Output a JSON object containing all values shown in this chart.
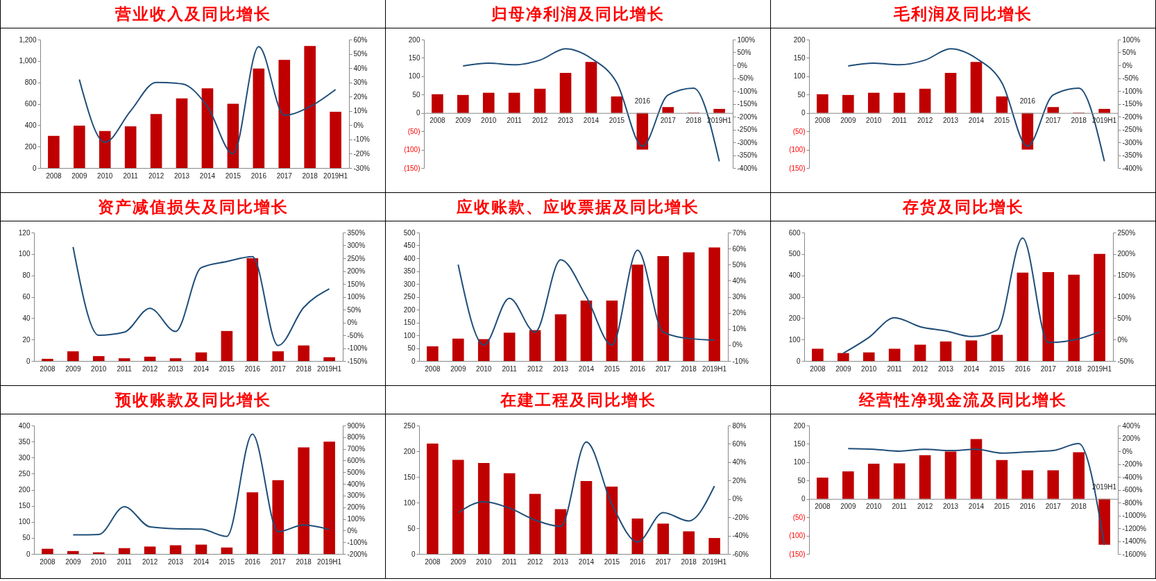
{
  "chart_data": [
    {
      "type": "bar",
      "title": "营业收入及同比增长",
      "categories": [
        "2008",
        "2009",
        "2010",
        "2011",
        "2012",
        "2013",
        "2014",
        "2015",
        "2016",
        "2017",
        "2018",
        "2019H1"
      ],
      "series": [
        {
          "color": "#c00000",
          "values": [
            300,
            395,
            345,
            390,
            505,
            650,
            745,
            600,
            930,
            1010,
            1140,
            525
          ]
        },
        {
          "type": "line",
          "axis": "y2",
          "color": "#1f4e79",
          "values": [
            null,
            32,
            -12,
            10,
            30,
            29,
            13,
            -20,
            55,
            7,
            13,
            25
          ]
        }
      ],
      "ylim": [
        0,
        1200
      ],
      "yticks": [
        0,
        200,
        400,
        600,
        800,
        {
          "value": 1000,
          "label": "1,000"
        },
        {
          "value": 1200,
          "label": "1,200"
        }
      ],
      "y2lim": [
        -30,
        60
      ],
      "y2ticks": [
        {
          "value": -30,
          "label": "-30%"
        },
        {
          "value": -20,
          "label": "-20%"
        },
        {
          "value": -10,
          "label": "-10%"
        },
        {
          "value": 0,
          "label": "0%"
        },
        {
          "value": 10,
          "label": "10%"
        },
        {
          "value": 20,
          "label": "20%"
        },
        {
          "value": 30,
          "label": "30%"
        },
        {
          "value": 40,
          "label": "40%"
        },
        {
          "value": 50,
          "label": "50%"
        },
        {
          "value": 60,
          "label": "60%"
        }
      ]
    },
    {
      "type": "bar",
      "title": "归母净利润及同比增长",
      "categories": [
        "2008",
        "2009",
        "2010",
        "2011",
        "2012",
        "2013",
        "2014",
        "2015",
        "2016",
        "2017",
        "2018",
        "2019H1"
      ],
      "series": [
        {
          "color": "#c00000",
          "values": [
            51,
            49,
            55,
            55,
            66,
            109,
            139,
            45,
            -100,
            16,
            1,
            11
          ]
        },
        {
          "type": "line",
          "axis": "y2",
          "color": "#1f4e79",
          "values": [
            null,
            -3,
            8,
            2,
            20,
            64,
            27,
            -68,
            -315,
            -116,
            -89,
            -374
          ]
        }
      ],
      "ylim": [
        -150,
        200
      ],
      "yticks": [
        {
          "value": -150,
          "label": "(150)"
        },
        {
          "value": -100,
          "label": "(100)"
        },
        {
          "value": -50,
          "label": "(50)"
        },
        0,
        50,
        100,
        150,
        200
      ],
      "y2lim": [
        -400,
        100
      ],
      "y2ticks": [
        {
          "value": -400,
          "label": "-400%"
        },
        {
          "value": -350,
          "label": "-350%"
        },
        {
          "value": -300,
          "label": "-300%"
        },
        {
          "value": -250,
          "label": "-250%"
        },
        {
          "value": -200,
          "label": "-200%"
        },
        {
          "value": -150,
          "label": "-150%"
        },
        {
          "value": -100,
          "label": "-100%"
        },
        {
          "value": -50,
          "label": "-50%"
        },
        {
          "value": 0,
          "label": "0%"
        },
        {
          "value": 50,
          "label": "50%"
        },
        {
          "value": 100,
          "label": "100%"
        }
      ]
    },
    {
      "type": "bar",
      "title": "毛利润及同比增长",
      "categories": [
        "2008",
        "2009",
        "2010",
        "2011",
        "2012",
        "2013",
        "2014",
        "2015",
        "2016",
        "2017",
        "2018",
        "2019H1"
      ],
      "series": [
        {
          "color": "#c00000",
          "values": [
            51,
            49,
            55,
            55,
            66,
            109,
            139,
            45,
            -100,
            16,
            1,
            11
          ]
        },
        {
          "type": "line",
          "axis": "y2",
          "color": "#1f4e79",
          "values": [
            null,
            -3,
            8,
            2,
            20,
            64,
            27,
            -68,
            -315,
            -116,
            -89,
            -374
          ]
        }
      ],
      "ylim": [
        -150,
        200
      ],
      "yticks": [
        {
          "value": -150,
          "label": "(150)"
        },
        {
          "value": -100,
          "label": "(100)"
        },
        {
          "value": -50,
          "label": "(50)"
        },
        0,
        50,
        100,
        150,
        200
      ],
      "y2lim": [
        -400,
        100
      ],
      "y2ticks": [
        {
          "value": -400,
          "label": "-400%"
        },
        {
          "value": -350,
          "label": "-350%"
        },
        {
          "value": -300,
          "label": "-300%"
        },
        {
          "value": -250,
          "label": "-250%"
        },
        {
          "value": -200,
          "label": "-200%"
        },
        {
          "value": -150,
          "label": "-150%"
        },
        {
          "value": -100,
          "label": "-100%"
        },
        {
          "value": -50,
          "label": "-50%"
        },
        {
          "value": 0,
          "label": "0%"
        },
        {
          "value": 50,
          "label": "50%"
        },
        {
          "value": 100,
          "label": "100%"
        }
      ]
    },
    {
      "type": "bar",
      "title": "资产减值损失及同比增长",
      "categories": [
        "2008",
        "2009",
        "2010",
        "2011",
        "2012",
        "2013",
        "2014",
        "2015",
        "2016",
        "2017",
        "2018",
        "2019H1"
      ],
      "series": [
        {
          "color": "#c00000",
          "values": [
            2,
            9,
            4.5,
            2.5,
            4,
            2.5,
            8,
            28,
            96,
            9,
            14.5,
            3.5
          ]
        },
        {
          "type": "line",
          "axis": "y2",
          "color": "#1f4e79",
          "values": [
            null,
            294,
            -50,
            -38,
            55,
            -35,
            213,
            237,
            256,
            -90,
            58,
            131
          ]
        }
      ],
      "ylim": [
        0,
        120
      ],
      "yticks": [
        0,
        20,
        40,
        60,
        80,
        100,
        120
      ],
      "y2lim": [
        -150,
        350
      ],
      "y2ticks": [
        {
          "value": -150,
          "label": "-150%"
        },
        {
          "value": -100,
          "label": "-100%"
        },
        {
          "value": -50,
          "label": "-50%"
        },
        {
          "value": 0,
          "label": "0%"
        },
        {
          "value": 50,
          "label": "50%"
        },
        {
          "value": 100,
          "label": "100%"
        },
        {
          "value": 150,
          "label": "150%"
        },
        {
          "value": 200,
          "label": "200%"
        },
        {
          "value": 250,
          "label": "250%"
        },
        {
          "value": 300,
          "label": "300%"
        },
        {
          "value": 350,
          "label": "350%"
        }
      ]
    },
    {
      "type": "bar",
      "title": "应收账款、应收票据及同比增长",
      "categories": [
        "2008",
        "2009",
        "2010",
        "2011",
        "2012",
        "2013",
        "2014",
        "2015",
        "2016",
        "2017",
        "2018",
        "2019H1"
      ],
      "series": [
        {
          "color": "#c00000",
          "values": [
            57,
            87,
            85,
            110,
            120,
            182,
            235,
            235,
            375,
            408,
            423,
            442
          ]
        },
        {
          "type": "line",
          "axis": "y2",
          "color": "#1f4e79",
          "values": [
            null,
            50,
            0,
            29,
            8,
            53,
            30,
            0,
            59,
            8,
            4,
            3
          ]
        }
      ],
      "ylim": [
        0,
        500
      ],
      "yticks": [
        0,
        50,
        100,
        150,
        200,
        250,
        300,
        350,
        400,
        450,
        500
      ],
      "y2lim": [
        -10,
        70
      ],
      "y2ticks": [
        {
          "value": -10,
          "label": "-10%"
        },
        {
          "value": 0,
          "label": "0%"
        },
        {
          "value": 10,
          "label": "10%"
        },
        {
          "value": 20,
          "label": "20%"
        },
        {
          "value": 30,
          "label": "30%"
        },
        {
          "value": 40,
          "label": "40%"
        },
        {
          "value": 50,
          "label": "50%"
        },
        {
          "value": 60,
          "label": "60%"
        },
        {
          "value": 70,
          "label": "70%"
        }
      ]
    },
    {
      "type": "bar",
      "title": "存货及同比增长",
      "categories": [
        "2008",
        "2009",
        "2010",
        "2011",
        "2012",
        "2013",
        "2014",
        "2015",
        "2016",
        "2017",
        "2018",
        "2019H1"
      ],
      "series": [
        {
          "color": "#c00000",
          "values": [
            57,
            37,
            40,
            57,
            76,
            91,
            96,
            122,
            413,
            415,
            403,
            500
          ]
        },
        {
          "type": "line",
          "axis": "y2",
          "color": "#1f4e79",
          "values": [
            null,
            -32,
            5,
            51,
            30,
            20,
            7,
            22,
            237,
            -7,
            -1,
            18
          ]
        }
      ],
      "ylim": [
        0,
        600
      ],
      "yticks": [
        0,
        100,
        200,
        300,
        400,
        500,
        600
      ],
      "y2lim": [
        -50,
        250
      ],
      "y2ticks": [
        {
          "value": -50,
          "label": "-50%"
        },
        {
          "value": 0,
          "label": "0%"
        },
        {
          "value": 50,
          "label": "50%"
        },
        {
          "value": 100,
          "label": "100%"
        },
        {
          "value": 150,
          "label": "150%"
        },
        {
          "value": 200,
          "label": "200%"
        },
        {
          "value": 250,
          "label": "250%"
        }
      ]
    },
    {
      "type": "bar",
      "title": "预收账款及同比增长",
      "categories": [
        "2008",
        "2009",
        "2010",
        "2011",
        "2012",
        "2013",
        "2014",
        "2015",
        "2016",
        "2017",
        "2018",
        "2019H1"
      ],
      "series": [
        {
          "color": "#c00000",
          "values": [
            16,
            9,
            5,
            18,
            23,
            27,
            29,
            20,
            192,
            230,
            332,
            350
          ]
        },
        {
          "type": "line",
          "axis": "y2",
          "color": "#1f4e79",
          "values": [
            null,
            -37,
            -33,
            205,
            32,
            16,
            12,
            -50,
            826,
            -10,
            48,
            9
          ]
        }
      ],
      "ylim": [
        0,
        400
      ],
      "yticks": [
        0,
        50,
        100,
        150,
        200,
        250,
        300,
        350,
        400
      ],
      "y2lim": [
        -200,
        900
      ],
      "y2ticks": [
        {
          "value": -200,
          "label": "-200%"
        },
        {
          "value": -100,
          "label": "-100%"
        },
        {
          "value": 0,
          "label": "0%"
        },
        {
          "value": 100,
          "label": "100%"
        },
        {
          "value": 200,
          "label": "200%"
        },
        {
          "value": 300,
          "label": "300%"
        },
        {
          "value": 400,
          "label": "400%"
        },
        {
          "value": 500,
          "label": "500%"
        },
        {
          "value": 600,
          "label": "600%"
        },
        {
          "value": 700,
          "label": "700%"
        },
        {
          "value": 800,
          "label": "800%"
        },
        {
          "value": 900,
          "label": "900%"
        }
      ]
    },
    {
      "type": "bar",
      "title": "在建工程及同比增长",
      "categories": [
        "2008",
        "2009",
        "2010",
        "2011",
        "2012",
        "2013",
        "2014",
        "2015",
        "2016",
        "2017",
        "2018",
        "2019H1"
      ],
      "series": [
        {
          "color": "#c00000",
          "values": [
            215,
            183,
            177,
            157,
            117,
            87,
            142,
            131,
            69,
            59,
            44,
            31
          ]
        },
        {
          "type": "line",
          "axis": "y2",
          "color": "#1f4e79",
          "values": [
            null,
            -15,
            -3,
            -10,
            -23,
            -30,
            62,
            -6,
            -47,
            -15,
            -24,
            14
          ]
        }
      ],
      "ylim": [
        0,
        250
      ],
      "yticks": [
        0,
        50,
        100,
        150,
        200,
        250
      ],
      "y2lim": [
        -60,
        80
      ],
      "y2ticks": [
        {
          "value": -60,
          "label": "-60%"
        },
        {
          "value": -40,
          "label": "-40%"
        },
        {
          "value": -20,
          "label": "-20%"
        },
        {
          "value": 0,
          "label": "0%"
        },
        {
          "value": 20,
          "label": "20%"
        },
        {
          "value": 40,
          "label": "40%"
        },
        {
          "value": 60,
          "label": "60%"
        },
        {
          "value": 80,
          "label": "80%"
        }
      ]
    },
    {
      "type": "bar",
      "title": "经营性净现金流及同比增长",
      "categories": [
        "2008",
        "2009",
        "2010",
        "2011",
        "2012",
        "2013",
        "2014",
        "2015",
        "2016",
        "2017",
        "2018",
        "2019H1"
      ],
      "series": [
        {
          "color": "#c00000",
          "values": [
            58,
            75,
            96,
            97,
            119,
            129,
            163,
            106,
            78,
            78,
            127,
            -125
          ]
        },
        {
          "type": "line",
          "axis": "y2",
          "color": "#1f4e79",
          "values": [
            null,
            40,
            30,
            0,
            30,
            10,
            30,
            -30,
            -10,
            10,
            120,
            -1460
          ]
        }
      ],
      "ylim": [
        -150,
        200
      ],
      "yticks": [
        {
          "value": -150,
          "label": "(150)"
        },
        {
          "value": -100,
          "label": "(100)"
        },
        {
          "value": -50,
          "label": "(50)"
        },
        0,
        50,
        100,
        150,
        200
      ],
      "y2lim": [
        -1600,
        400
      ],
      "y2ticks": [
        {
          "value": -1600,
          "label": "-1600%"
        },
        {
          "value": -1400,
          "label": "-1400%"
        },
        {
          "value": -1200,
          "label": "-1200%"
        },
        {
          "value": -1000,
          "label": "-1000%"
        },
        {
          "value": -800,
          "label": "-800%"
        },
        {
          "value": -600,
          "label": "-600%"
        },
        {
          "value": -400,
          "label": "-400%"
        },
        {
          "value": -200,
          "label": "-200%"
        },
        {
          "value": 0,
          "label": "0%"
        },
        {
          "value": 200,
          "label": "200%"
        },
        {
          "value": 400,
          "label": "400%"
        }
      ]
    }
  ]
}
